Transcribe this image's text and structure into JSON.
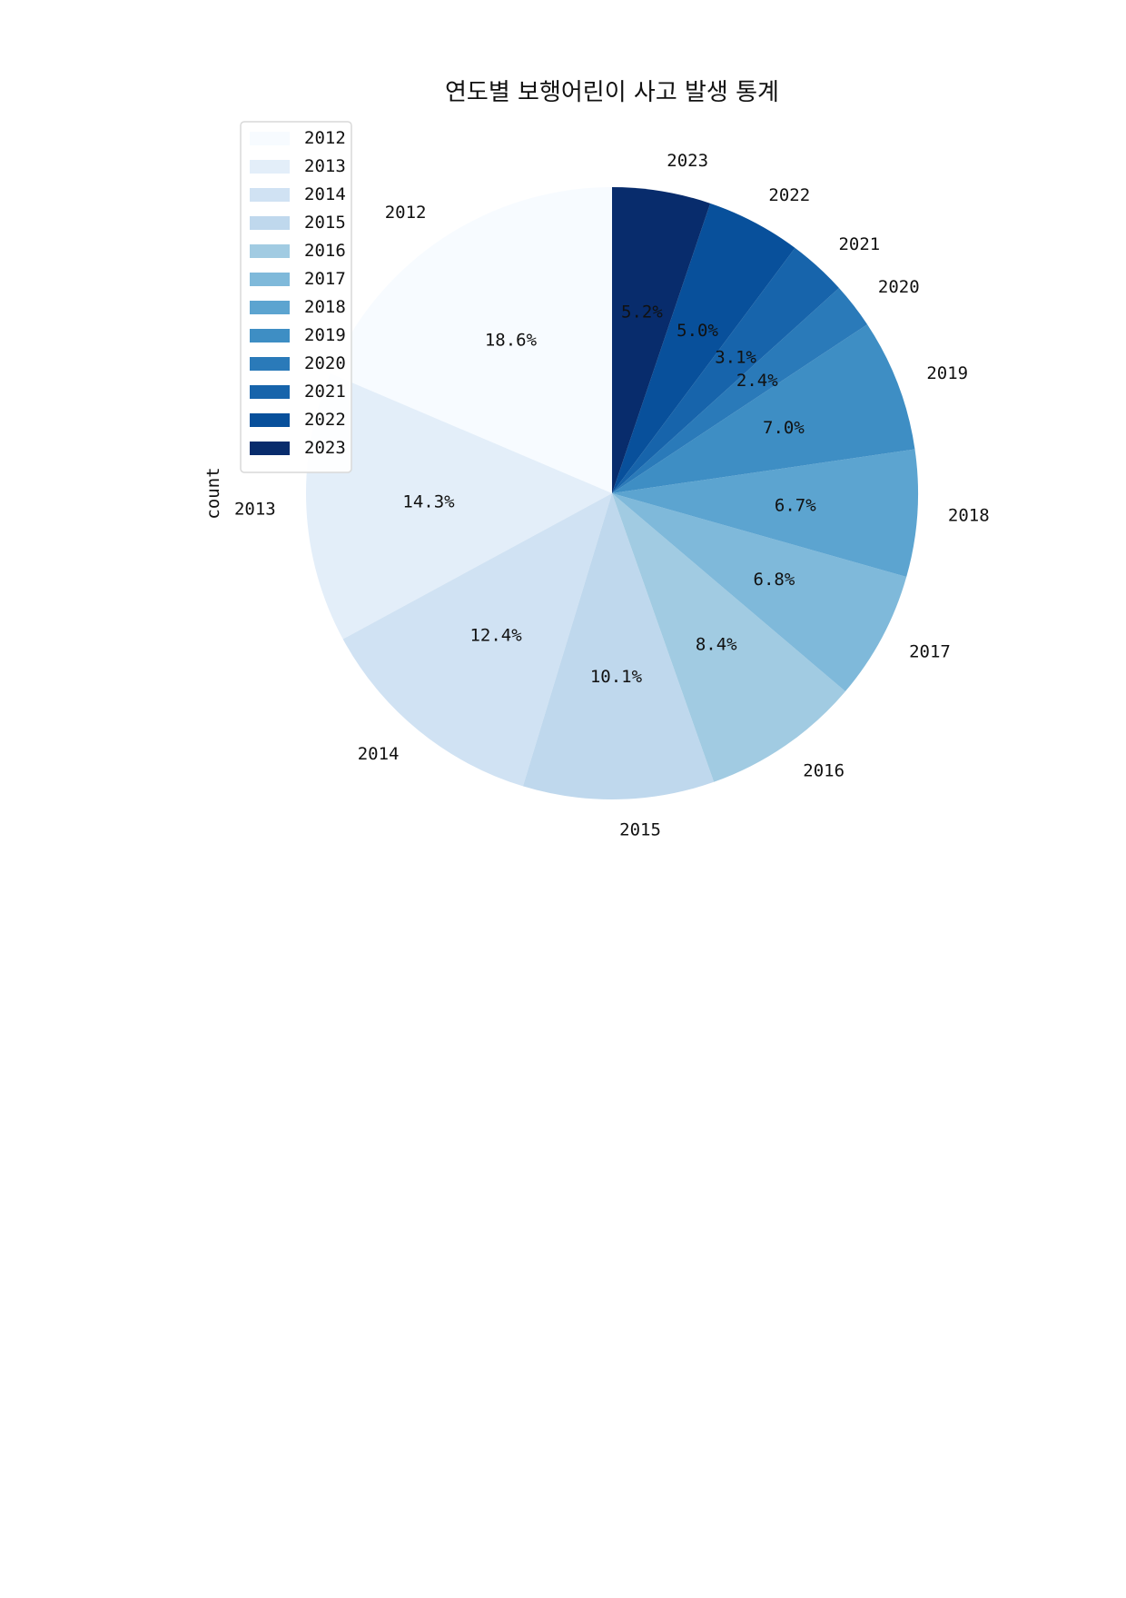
{
  "chart_data": {
    "type": "pie",
    "title": "연도별 보행어린이 사고 발생 통계",
    "ylabel": "count",
    "categories": [
      "2012",
      "2013",
      "2014",
      "2015",
      "2016",
      "2017",
      "2018",
      "2019",
      "2020",
      "2021",
      "2022",
      "2023"
    ],
    "values": [
      18.6,
      14.3,
      12.4,
      10.1,
      8.4,
      6.8,
      6.7,
      7.0,
      2.4,
      3.1,
      5.0,
      5.2
    ],
    "percent_labels": [
      "18.6%",
      "14.3%",
      "12.4%",
      "10.1%",
      "8.4%",
      "6.8%",
      "6.7%",
      "7.0%",
      "2.4%",
      "3.1%",
      "5.0%",
      "5.2%"
    ],
    "colors": [
      "#f7fbff",
      "#e3eef9",
      "#d0e2f3",
      "#bfd8ed",
      "#a1cbe2",
      "#7fb9da",
      "#5ca4d0",
      "#3e8ec4",
      "#2a7ab9",
      "#1764ab",
      "#08509b",
      "#082c6c"
    ],
    "legend": {
      "placement": "upper-left",
      "entries": [
        "2012",
        "2013",
        "2014",
        "2015",
        "2016",
        "2017",
        "2018",
        "2019",
        "2020",
        "2021",
        "2022",
        "2023"
      ]
    },
    "start_angle_deg": 90,
    "direction": "counterclockwise"
  }
}
